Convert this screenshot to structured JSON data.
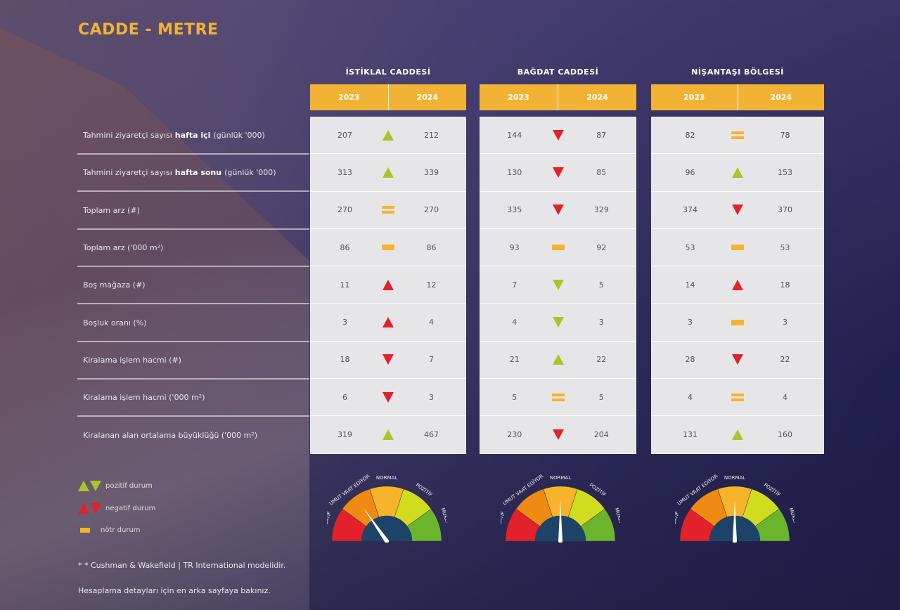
{
  "title": "CADDE - METRE",
  "colors": {
    "accent": "#f2b233",
    "positive": "#a8c62a",
    "negative": "#e4202a",
    "neutral": "#f5b42a"
  },
  "regions": [
    {
      "name": "İSTİKLAL CADDESİ",
      "years": [
        "2023",
        "2024"
      ]
    },
    {
      "name": "BAĞDAT CADDESİ",
      "years": [
        "2023",
        "2024"
      ]
    },
    {
      "name": "NİŞANTAŞI BÖLGESİ",
      "years": [
        "2023",
        "2024"
      ]
    }
  ],
  "rows": [
    {
      "pre": "Tahmini ziyaretçi sayısı",
      "bold": "hafta içi",
      "post": "(günlük '000)",
      "cells": [
        [
          "207",
          "up-pos",
          "212"
        ],
        [
          "144",
          "down-neg",
          "87"
        ],
        [
          "82",
          "eq",
          "78"
        ]
      ]
    },
    {
      "pre": "Tahmini ziyaretçi sayısı",
      "bold": "hafta sonu",
      "post": "(günlük '000)",
      "cells": [
        [
          "313",
          "up-pos",
          "339"
        ],
        [
          "130",
          "down-neg",
          "85"
        ],
        [
          "96",
          "up-pos",
          "153"
        ]
      ]
    },
    {
      "pre": "Toplam arz (#)",
      "bold": "",
      "post": "",
      "cells": [
        [
          "270",
          "eq",
          "270"
        ],
        [
          "335",
          "down-neg",
          "329"
        ],
        [
          "374",
          "down-neg",
          "370"
        ]
      ]
    },
    {
      "pre": "Toplam arz ('000 m²)",
      "bold": "",
      "post": "",
      "cells": [
        [
          "86",
          "bar",
          "86"
        ],
        [
          "93",
          "bar",
          "92"
        ],
        [
          "53",
          "bar",
          "53"
        ]
      ]
    },
    {
      "pre": "Boş mağaza (#)",
      "bold": "",
      "post": "",
      "cells": [
        [
          "11",
          "up-neg",
          "12"
        ],
        [
          "7",
          "down-pos",
          "5"
        ],
        [
          "14",
          "up-neg",
          "18"
        ]
      ]
    },
    {
      "pre": "Boşluk oranı (%)",
      "bold": "",
      "post": "",
      "cells": [
        [
          "3",
          "up-neg",
          "4"
        ],
        [
          "4",
          "down-pos",
          "3"
        ],
        [
          "3",
          "bar",
          "3"
        ]
      ]
    },
    {
      "pre": "Kiralama işlem hacmi (#)",
      "bold": "",
      "post": "",
      "cells": [
        [
          "18",
          "down-neg",
          "7"
        ],
        [
          "21",
          "up-pos",
          "22"
        ],
        [
          "28",
          "down-neg",
          "22"
        ]
      ]
    },
    {
      "pre": "Kiralama işlem hacmi ('000 m²)",
      "bold": "",
      "post": "",
      "cells": [
        [
          "6",
          "down-neg",
          "3"
        ],
        [
          "5",
          "eq",
          "5"
        ],
        [
          "4",
          "eq",
          "4"
        ]
      ]
    },
    {
      "pre": "Kiralanan alan ortalama büyüklüğü ('000 m²)",
      "bold": "",
      "post": "",
      "cells": [
        [
          "319",
          "up-pos",
          "467"
        ],
        [
          "230",
          "down-neg",
          "204"
        ],
        [
          "131",
          "up-pos",
          "160"
        ]
      ]
    }
  ],
  "legend": {
    "positive": "pozitif durum",
    "negative": "negatif durum",
    "neutral": "nötr durum"
  },
  "notes": [
    "* * Cushman & Wakefield | TR International modelidir.",
    "Hesaplama detayları için en arka sayfaya bakınız."
  ],
  "gauge_labels": [
    "NEGATİF",
    "UMUT VAAT EDİYOR",
    "NORMAL",
    "POZİTİF",
    "MÜKEMMEL"
  ],
  "gauges": [
    {
      "region": "İSTİKLAL CADDESİ",
      "needle_deg": -35
    },
    {
      "region": "BAĞDAT CADDESİ",
      "needle_deg": 0
    },
    {
      "region": "NİŞANTAŞI BÖLGESİ",
      "needle_deg": 0
    }
  ]
}
